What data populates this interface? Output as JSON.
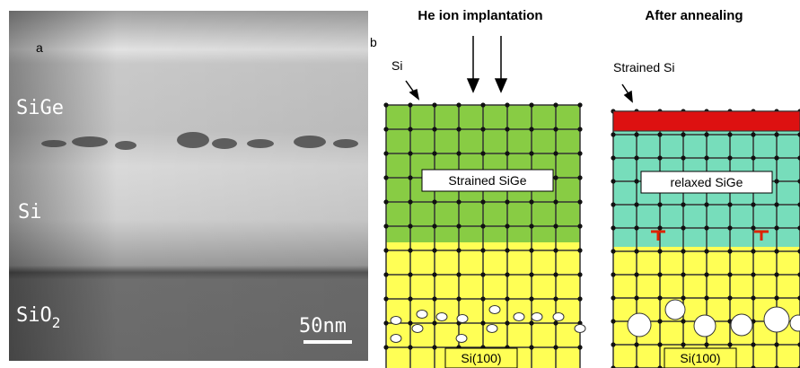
{
  "panel_a": {
    "letter": "a",
    "layers": [
      "SiGe",
      "Si"
    ],
    "oxide": {
      "base": "SiO",
      "subscript": "2"
    },
    "scale_bar": "50nm"
  },
  "panel_b": {
    "letter": "b",
    "left": {
      "title": "He ion implantation",
      "surface_label": "Si",
      "film_label": "Strained SiGe",
      "substrate_label": "Si(100)"
    },
    "right": {
      "title": "After annealing",
      "surface_label": "Strained Si",
      "film_label": "relaxed SiGe",
      "substrate_label": "Si(100)"
    }
  }
}
